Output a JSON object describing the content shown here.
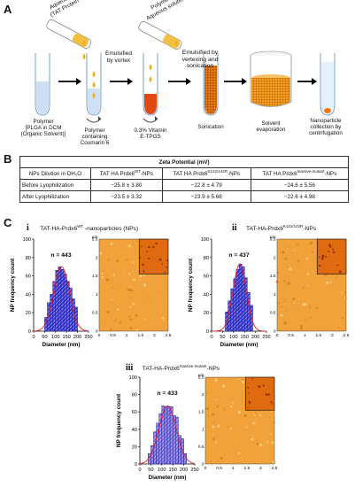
{
  "panel_a": {
    "letter": "A",
    "vial1_label": "Aqueous solution\n(TAT Protein+ BSA)",
    "vial2_label": "Polymer +\nAqueous solution",
    "step1_label": "Emulsified\nby vortex",
    "step2_label": "Emulsified by\nvertexing and\nsonication",
    "tube1_label": "Polymer\n[PLGA in DCM\n(Organic Solvent)]",
    "tube2_label": "Polymer\ncontaining\nCoumarin 6",
    "tube3_label": "0.3% Vitamin\nE-TPGS",
    "tube4_label": "Sonication",
    "beaker_label": "Solvent\nevaporation",
    "tube5_label": "Nanoparticle\ncollection by\ncentrifugation"
  },
  "panel_b": {
    "letter": "B",
    "table_title": "Zeta Potential (mV)",
    "col0": "NPs Dilution in DH₂O",
    "col1_base": "TAT HA Prdx6",
    "col1_sup": "WT",
    "col1_suffix": "-NPs",
    "col2_base": "TAT HA Prdx6",
    "col2_sup": "K122/142R",
    "col2_suffix": "-NPs",
    "col3_base": "TAT HA Prdx6",
    "col3_sup": "Inactive-mutant",
    "col3_suffix": "-NPs",
    "rows": [
      {
        "label": "Before Lyophilization",
        "v1": "−25.8 ± 3.80",
        "v2": "−22.8 ± 4.79",
        "v3": "−24.6 ± 5.56"
      },
      {
        "label": "After Lyophilization",
        "v1": "−23.5 ± 3.32",
        "v2": "−23.9 ± 5.68",
        "v3": "−22.6 ± 4.98"
      }
    ]
  },
  "panel_c": {
    "letter": "C",
    "chart_data": [
      {
        "type": "bar",
        "roman": "i",
        "title_base": "TAT-HA-Prdx6",
        "title_sup": "WT",
        "title_suffix": " -nanoparticles (NPs)",
        "n_label": "n = 443",
        "xlabel": "Diameter (nm)",
        "ylabel": "NP frequency count",
        "x_ticks": [
          "0",
          "50",
          "100",
          "150",
          "200",
          "250"
        ],
        "y_ticks": [
          "0",
          "20",
          "40",
          "60",
          "80",
          "100"
        ],
        "xlim": [
          0,
          250
        ],
        "ylim": [
          0,
          100
        ],
        "bins_x": [
          50,
          62.5,
          75,
          87.5,
          100,
          112.5,
          125,
          137.5,
          150,
          162.5,
          175,
          187.5,
          200
        ],
        "values": [
          15,
          31,
          40,
          54,
          66,
          70,
          67,
          62,
          54,
          47,
          35,
          26
        ],
        "bar_color": "#3a3ad8",
        "curve_color": "#e02020",
        "afm_ticks": [
          "0",
          "0.5",
          "1",
          "1.5",
          "2",
          "2.5"
        ],
        "afm_unit": "µm"
      },
      {
        "type": "bar",
        "roman": "ii",
        "title_base": "TAT-HA-Prdx6",
        "title_sup": "K122/142R",
        "title_suffix": "-NPs",
        "n_label": "n = 437",
        "xlabel": "Diameter (nm)",
        "ylabel": "NP frequency count",
        "x_ticks": [
          "0",
          "50",
          "100",
          "150",
          "200",
          "250"
        ],
        "y_ticks": [
          "0",
          "20",
          "40",
          "60",
          "80",
          "100"
        ],
        "xlim": [
          0,
          250
        ],
        "ylim": [
          0,
          100
        ],
        "bins_x": [
          62.5,
          75,
          87.5,
          100,
          112.5,
          125,
          137.5,
          150,
          162.5,
          175,
          187.5
        ],
        "values": [
          21,
          33,
          46,
          57,
          67,
          73,
          70,
          58,
          42,
          28
        ],
        "bar_color": "#3a3ad8",
        "curve_color": "#e02020",
        "afm_ticks": [
          "0",
          "0.5",
          "1",
          "1.5",
          "2",
          "2.5"
        ],
        "afm_unit": "µm"
      },
      {
        "type": "bar",
        "roman": "iii",
        "title_base": "TAT-HA-Prdx6",
        "title_sup": "Inactive-mutant",
        "title_suffix": "-NPs",
        "n_label": "n = 433",
        "xlabel": "Diameter (nm)",
        "ylabel": "NP frequency count",
        "x_ticks": [
          "0",
          "50",
          "100",
          "150",
          "200",
          "250"
        ],
        "y_ticks": [
          "0",
          "20",
          "40",
          "60",
          "80",
          "100"
        ],
        "xlim": [
          0,
          250
        ],
        "ylim": [
          0,
          100
        ],
        "bins_x": [
          37.5,
          50,
          62.5,
          75,
          87.5,
          100,
          112.5,
          125,
          137.5,
          150,
          162.5,
          175,
          187.5,
          200,
          212.5
        ],
        "values": [
          12,
          21,
          37,
          47,
          58,
          67,
          66,
          66,
          66,
          56,
          54,
          33,
          29,
          12
        ],
        "bar_color": "#7b6fe6",
        "curve_color": "#e02020",
        "afm_ticks": [
          "0",
          "0.5",
          "1",
          "1.5",
          "2",
          "2.5"
        ],
        "afm_unit": "µm"
      }
    ]
  }
}
